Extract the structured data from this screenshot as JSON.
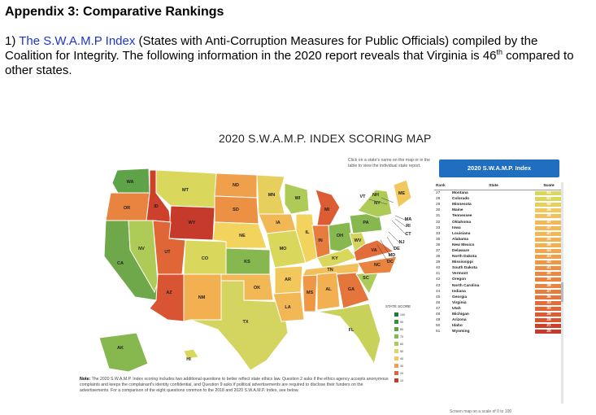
{
  "heading": "Appendix 3: Comparative Rankings",
  "para": {
    "prefix": "1) ",
    "link": "The S.W.A.M.P Index",
    "rest": " (States with Anti-Corruption Measures for Public Officials) compiled by the Coalition for Integrity.  The following information in the 2020 report reveals that Virginia is 46",
    "sup": "th",
    "end": " compared to other states."
  },
  "figure": {
    "title": "2020 S.W.A.M.P. INDEX SCORING MAP",
    "hint": "Click on a state's name on the map or in the table to view the individual state report.",
    "legend_title": "STATE SCORE",
    "legend": [
      {
        "label": "100",
        "color": "#1e7b34"
      },
      {
        "label": "90",
        "color": "#3b8f3a"
      },
      {
        "label": "80",
        "color": "#5fa348"
      },
      {
        "label": "70",
        "color": "#86b84f"
      },
      {
        "label": "60",
        "color": "#aecb58"
      },
      {
        "label": "50",
        "color": "#d9d75c"
      },
      {
        "label": "40",
        "color": "#f2c85c"
      },
      {
        "label": "30",
        "color": "#f0a04a"
      },
      {
        "label": "20",
        "color": "#e0663a"
      },
      {
        "label": "10",
        "color": "#c53a2a"
      }
    ],
    "note_label": "Note:",
    "note": " The 2020 S.W.A.M.P. Index scoring includes two additional questions to better reflect state ethics law. Question 2 asks if the ethics agency accepts anonymous complaints and keeps the complainant's identity confidential, and Question 9 asks if political advertisements are required to disclose their funders on the advertisements. For a comparison of the eight questions common to the 2018 and 2020 S.W.A.M.P. Index, see below.",
    "cut_text": "Screen map on a scale of 0 to 100"
  },
  "table": {
    "title": "2020 S.W.A.M.P. Index",
    "headers": {
      "rank": "Rank",
      "state": "State",
      "score": "Score"
    },
    "rows": [
      {
        "rank": "27",
        "state": "Montana",
        "score": "53",
        "color": "#d9d75c"
      },
      {
        "rank": "28",
        "state": "Colorado",
        "score": "51",
        "color": "#d9d75c"
      },
      {
        "rank": "29",
        "state": "Minnesota",
        "score": "50",
        "color": "#e6cf5c"
      },
      {
        "rank": "30",
        "state": "Maine",
        "score": "49",
        "color": "#f0c85c"
      },
      {
        "rank": "31",
        "state": "Tennessee",
        "score": "48",
        "color": "#f2c05a"
      },
      {
        "rank": "32",
        "state": "Oklahoma",
        "score": "47",
        "color": "#f2b855"
      },
      {
        "rank": "33",
        "state": "Iowa",
        "score": "47",
        "color": "#f2b855"
      },
      {
        "rank": "33",
        "state": "Louisiana",
        "score": "47",
        "color": "#f2b855"
      },
      {
        "rank": "35",
        "state": "Alabama",
        "score": "46",
        "color": "#f2b050"
      },
      {
        "rank": "36",
        "state": "New Mexico",
        "score": "46",
        "color": "#f2b050"
      },
      {
        "rank": "37",
        "state": "Delaware",
        "score": "44",
        "color": "#f0a84c"
      },
      {
        "rank": "38",
        "state": "North Dakota",
        "score": "43",
        "color": "#f0a04a"
      },
      {
        "rank": "39",
        "state": "Mississippi",
        "score": "42",
        "color": "#ee9846"
      },
      {
        "rank": "40",
        "state": "South Dakota",
        "score": "41",
        "color": "#ec9044"
      },
      {
        "rank": "41",
        "state": "Vermont",
        "score": "40",
        "color": "#ea8a42"
      },
      {
        "rank": "42",
        "state": "Oregon",
        "score": "39",
        "color": "#e88440"
      },
      {
        "rank": "43",
        "state": "North Carolina",
        "score": "39",
        "color": "#e88440"
      },
      {
        "rank": "44",
        "state": "Indiana",
        "score": "37",
        "color": "#e67c3e"
      },
      {
        "rank": "45",
        "state": "Georgia",
        "score": "36",
        "color": "#e4763c"
      },
      {
        "rank": "46",
        "state": "Virginia",
        "score": "33",
        "color": "#e26c3a"
      },
      {
        "rank": "47",
        "state": "Utah",
        "score": "32",
        "color": "#e06638"
      },
      {
        "rank": "48",
        "state": "Michigan",
        "score": "29",
        "color": "#dc5c34"
      },
      {
        "rank": "49",
        "state": "Arizona",
        "score": "28",
        "color": "#d85432"
      },
      {
        "rank": "50",
        "state": "Idaho",
        "score": "21",
        "color": "#cc402c"
      },
      {
        "rank": "51",
        "state": "Wyoming",
        "score": "20",
        "color": "#c53a2a"
      }
    ]
  },
  "map": {
    "states": [
      {
        "abbr": "WA",
        "color": "#5fa348"
      },
      {
        "abbr": "OR",
        "color": "#e88440"
      },
      {
        "abbr": "CA",
        "color": "#6fa84a"
      },
      {
        "abbr": "NV",
        "color": "#aecb58"
      },
      {
        "abbr": "ID",
        "color": "#cc402c"
      },
      {
        "abbr": "MT",
        "color": "#d9d75c"
      },
      {
        "abbr": "WY",
        "color": "#c53a2a"
      },
      {
        "abbr": "UT",
        "color": "#e06638"
      },
      {
        "abbr": "AZ",
        "color": "#d85432"
      },
      {
        "abbr": "CO",
        "color": "#d9d75c"
      },
      {
        "abbr": "NM",
        "color": "#f2b050"
      },
      {
        "abbr": "ND",
        "color": "#f0a04a"
      },
      {
        "abbr": "SD",
        "color": "#ec9044"
      },
      {
        "abbr": "NE",
        "color": "#f2d35e"
      },
      {
        "abbr": "KS",
        "color": "#86b84f"
      },
      {
        "abbr": "OK",
        "color": "#f2b855"
      },
      {
        "abbr": "TX",
        "color": "#d4d560"
      },
      {
        "abbr": "MN",
        "color": "#e6cf5c"
      },
      {
        "abbr": "IA",
        "color": "#f2b855"
      },
      {
        "abbr": "MO",
        "color": "#d9d75c"
      },
      {
        "abbr": "AR",
        "color": "#f2c85c"
      },
      {
        "abbr": "LA",
        "color": "#f2b855"
      },
      {
        "abbr": "WI",
        "color": "#aecb58"
      },
      {
        "abbr": "IL",
        "color": "#f2d35e"
      },
      {
        "abbr": "MS",
        "color": "#ee9846"
      },
      {
        "abbr": "MI",
        "color": "#dc5c34"
      },
      {
        "abbr": "IN",
        "color": "#e67c3e"
      },
      {
        "abbr": "KY",
        "color": "#d9d75c"
      },
      {
        "abbr": "TN",
        "color": "#f2c05a"
      },
      {
        "abbr": "AL",
        "color": "#f2b050"
      },
      {
        "abbr": "OH",
        "color": "#86b84f"
      },
      {
        "abbr": "GA",
        "color": "#e4763c"
      },
      {
        "abbr": "FL",
        "color": "#c8d25a"
      },
      {
        "abbr": "SC",
        "color": "#aecb58"
      },
      {
        "abbr": "NC",
        "color": "#e88440"
      },
      {
        "abbr": "VA",
        "color": "#e26c3a"
      },
      {
        "abbr": "WV",
        "color": "#d4d560"
      },
      {
        "abbr": "PA",
        "color": "#86b84f"
      },
      {
        "abbr": "NY",
        "color": "#aecb58"
      },
      {
        "abbr": "ME",
        "color": "#f0c85c"
      },
      {
        "abbr": "AK",
        "color": "#86b84f"
      },
      {
        "abbr": "HI",
        "color": "#d9d75c"
      }
    ],
    "callouts": [
      "NH",
      "VT",
      "MA",
      "RI",
      "CT",
      "NJ",
      "DE",
      "MD",
      "DC"
    ]
  }
}
